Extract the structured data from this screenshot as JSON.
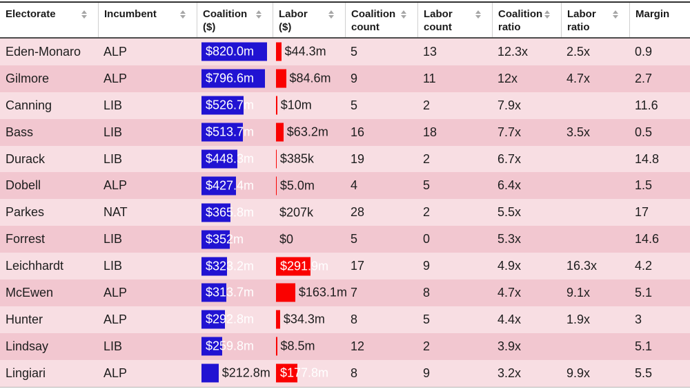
{
  "table": {
    "columns": [
      {
        "label": "Electorate",
        "sortable": true
      },
      {
        "label": "Incumbent",
        "sortable": true
      },
      {
        "label": "Coalition\n($)",
        "sortable": true
      },
      {
        "label": "Labor\n($)",
        "sortable": true
      },
      {
        "label": "Coalition\ncount",
        "sortable": true
      },
      {
        "label": "Labor\ncount",
        "sortable": true
      },
      {
        "label": "Coalition\nratio",
        "sortable": true
      },
      {
        "label": "Labor\nratio",
        "sortable": true
      },
      {
        "label": "Margin",
        "sortable": false
      }
    ],
    "rows": [
      {
        "electorate": "Eden-Monaro",
        "incumbent": "ALP",
        "coalition_label": "$820.0m",
        "coalition_m": 820.0,
        "labor_label": "$44.3m",
        "labor_m": 44.3,
        "coalition_count": "5",
        "labor_count": "13",
        "coalition_ratio": "12.3x",
        "labor_ratio": "2.5x",
        "margin": "0.9"
      },
      {
        "electorate": "Gilmore",
        "incumbent": "ALP",
        "coalition_label": "$796.6m",
        "coalition_m": 796.6,
        "labor_label": "$84.6m",
        "labor_m": 84.6,
        "coalition_count": "9",
        "labor_count": "11",
        "coalition_ratio": "12x",
        "labor_ratio": "4.7x",
        "margin": "2.7"
      },
      {
        "electorate": "Canning",
        "incumbent": "LIB",
        "coalition_label": "$526.7m",
        "coalition_m": 526.7,
        "labor_label": "$10m",
        "labor_m": 10,
        "coalition_count": "5",
        "labor_count": "2",
        "coalition_ratio": "7.9x",
        "labor_ratio": "",
        "margin": "11.6"
      },
      {
        "electorate": "Bass",
        "incumbent": "LIB",
        "coalition_label": "$513.7m",
        "coalition_m": 513.7,
        "labor_label": "$63.2m",
        "labor_m": 63.2,
        "coalition_count": "16",
        "labor_count": "18",
        "coalition_ratio": "7.7x",
        "labor_ratio": "3.5x",
        "margin": "0.5"
      },
      {
        "electorate": "Durack",
        "incumbent": "LIB",
        "coalition_label": "$448.3m",
        "coalition_m": 448.3,
        "labor_label": "$385k",
        "labor_m": 0.385,
        "coalition_count": "19",
        "labor_count": "2",
        "coalition_ratio": "6.7x",
        "labor_ratio": "",
        "margin": "14.8"
      },
      {
        "electorate": "Dobell",
        "incumbent": "ALP",
        "coalition_label": "$427.4m",
        "coalition_m": 427.4,
        "labor_label": "$5.0m",
        "labor_m": 5.0,
        "coalition_count": "4",
        "labor_count": "5",
        "coalition_ratio": "6.4x",
        "labor_ratio": "",
        "margin": "1.5"
      },
      {
        "electorate": "Parkes",
        "incumbent": "NAT",
        "coalition_label": "$365.8m",
        "coalition_m": 365.8,
        "labor_label": "$207k",
        "labor_m": 0.207,
        "coalition_count": "28",
        "labor_count": "2",
        "coalition_ratio": "5.5x",
        "labor_ratio": "",
        "margin": "17"
      },
      {
        "electorate": "Forrest",
        "incumbent": "LIB",
        "coalition_label": "$352m",
        "coalition_m": 352,
        "labor_label": "$0",
        "labor_m": 0,
        "coalition_count": "5",
        "labor_count": "0",
        "coalition_ratio": "5.3x",
        "labor_ratio": "",
        "margin": "14.6"
      },
      {
        "electorate": "Leichhardt",
        "incumbent": "LIB",
        "coalition_label": "$323.2m",
        "coalition_m": 323.2,
        "labor_label": "$291.9m",
        "labor_m": 291.9,
        "coalition_count": "17",
        "labor_count": "9",
        "coalition_ratio": "4.9x",
        "labor_ratio": "16.3x",
        "margin": "4.2"
      },
      {
        "electorate": "McEwen",
        "incumbent": "ALP",
        "coalition_label": "$313.7m",
        "coalition_m": 313.7,
        "labor_label": "$163.1m",
        "labor_m": 163.1,
        "coalition_count": "7",
        "labor_count": "8",
        "coalition_ratio": "4.7x",
        "labor_ratio": "9.1x",
        "margin": "5.1"
      },
      {
        "electorate": "Hunter",
        "incumbent": "ALP",
        "coalition_label": "$292.8m",
        "coalition_m": 292.8,
        "labor_label": "$34.3m",
        "labor_m": 34.3,
        "coalition_count": "8",
        "labor_count": "5",
        "coalition_ratio": "4.4x",
        "labor_ratio": "1.9x",
        "margin": "3"
      },
      {
        "electorate": "Lindsay",
        "incumbent": "LIB",
        "coalition_label": "$259.8m",
        "coalition_m": 259.8,
        "labor_label": "$8.5m",
        "labor_m": 8.5,
        "coalition_count": "12",
        "labor_count": "2",
        "coalition_ratio": "3.9x",
        "labor_ratio": "",
        "margin": "5.1"
      },
      {
        "electorate": "Lingiari",
        "incumbent": "ALP",
        "coalition_label": "$212.8m",
        "coalition_m": 212.8,
        "labor_label": "$177.8m",
        "labor_m": 177.8,
        "coalition_count": "8",
        "labor_count": "9",
        "coalition_ratio": "3.2x",
        "labor_ratio": "9.9x",
        "margin": "5.5"
      }
    ]
  },
  "colors": {
    "coalition_bar": "#2113d2",
    "labor_bar": "#fa0100",
    "row_light": "#f8dee3",
    "row_dark": "#f2c7d0",
    "header_text": "#1a1a1a",
    "cell_text": "#1d1d1d",
    "bar_label_inside": "#ffffff",
    "sort_icon": "#a6a6a6"
  },
  "chart_data": {
    "type": "table",
    "title": "",
    "columns": [
      "Electorate",
      "Incumbent",
      "Coalition ($)",
      "Labor ($)",
      "Coalition count",
      "Labor count",
      "Coalition ratio",
      "Labor ratio",
      "Margin"
    ],
    "bar_columns": {
      "coalition_dollars_millions_max": 820.0,
      "labor_dollars_millions_max": 291.9
    },
    "rows": [
      [
        "Eden-Monaro",
        "ALP",
        820.0,
        44.3,
        5,
        13,
        12.3,
        2.5,
        0.9
      ],
      [
        "Gilmore",
        "ALP",
        796.6,
        84.6,
        9,
        11,
        12,
        4.7,
        2.7
      ],
      [
        "Canning",
        "LIB",
        526.7,
        10,
        5,
        2,
        7.9,
        null,
        11.6
      ],
      [
        "Bass",
        "LIB",
        513.7,
        63.2,
        16,
        18,
        7.7,
        3.5,
        0.5
      ],
      [
        "Durack",
        "LIB",
        448.3,
        0.385,
        19,
        2,
        6.7,
        null,
        14.8
      ],
      [
        "Dobell",
        "ALP",
        427.4,
        5.0,
        4,
        5,
        6.4,
        null,
        1.5
      ],
      [
        "Parkes",
        "NAT",
        365.8,
        0.207,
        28,
        2,
        5.5,
        null,
        17
      ],
      [
        "Forrest",
        "LIB",
        352,
        0,
        5,
        0,
        5.3,
        null,
        14.6
      ],
      [
        "Leichhardt",
        "LIB",
        323.2,
        291.9,
        17,
        9,
        4.9,
        16.3,
        4.2
      ],
      [
        "McEwen",
        "ALP",
        313.7,
        163.1,
        7,
        8,
        4.7,
        9.1,
        5.1
      ],
      [
        "Hunter",
        "ALP",
        292.8,
        34.3,
        8,
        5,
        4.4,
        1.9,
        3
      ],
      [
        "Lindsay",
        "LIB",
        259.8,
        8.5,
        12,
        2,
        3.9,
        null,
        5.1
      ],
      [
        "Lingiari",
        "ALP",
        212.8,
        177.8,
        8,
        9,
        3.2,
        9.9,
        5.5
      ]
    ]
  }
}
